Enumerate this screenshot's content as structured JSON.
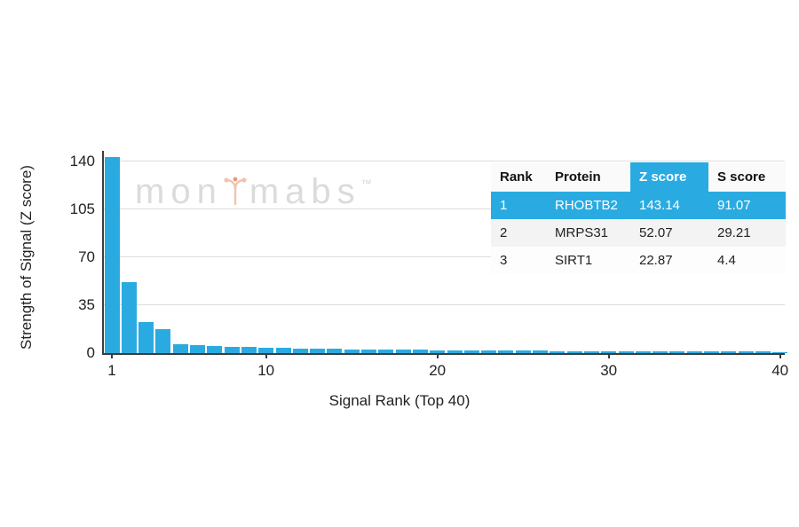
{
  "figure": {
    "xlabel": "Signal Rank (Top 40)",
    "ylabel": "Strength of Signal (Z score)",
    "watermark": {
      "left": "mon",
      "right": "mabs",
      "tm": "™"
    }
  },
  "chart_data": {
    "type": "bar",
    "title": "",
    "xlabel": "Signal Rank (Top 40)",
    "ylabel": "Strength of Signal (Z score)",
    "x": [
      1,
      2,
      3,
      4,
      5,
      6,
      7,
      8,
      9,
      10,
      11,
      12,
      13,
      14,
      15,
      16,
      17,
      18,
      19,
      20,
      21,
      22,
      23,
      24,
      25,
      26,
      27,
      28,
      29,
      30,
      31,
      32,
      33,
      34,
      35,
      36,
      37,
      38,
      39,
      40
    ],
    "values": [
      143.14,
      52.07,
      22.87,
      17.5,
      6.2,
      5.8,
      5.2,
      4.8,
      4.4,
      4.0,
      3.7,
      3.4,
      3.2,
      3.0,
      2.8,
      2.7,
      2.5,
      2.4,
      2.3,
      2.2,
      2.1,
      2.0,
      1.9,
      1.8,
      1.7,
      1.7,
      1.6,
      1.5,
      1.5,
      1.4,
      1.4,
      1.3,
      1.3,
      1.2,
      1.2,
      1.1,
      1.1,
      1.0,
      1.0,
      0.9
    ],
    "yticks": [
      0,
      35,
      70,
      105,
      140
    ],
    "xticks": [
      1,
      10,
      20,
      30,
      40
    ],
    "ylim": [
      0,
      148
    ],
    "xlim": [
      1,
      40
    ],
    "grid": true,
    "legend": "none",
    "bar_color": "#29ABE2"
  },
  "table": {
    "columns": [
      "Rank",
      "Protein",
      "Z score",
      "S score"
    ],
    "highlight_column_index": 2,
    "rows": [
      {
        "rank": "1",
        "protein": "RHOBTB2",
        "z": "143.14",
        "s": "91.07",
        "highlight": true
      },
      {
        "rank": "2",
        "protein": "MRPS31",
        "z": "52.07",
        "s": "29.21",
        "highlight": false
      },
      {
        "rank": "3",
        "protein": "SIRT1",
        "z": "22.87",
        "s": "4.4",
        "highlight": false
      }
    ]
  },
  "colors": {
    "accent": "#29ABE2",
    "gridline": "#dcdcdc",
    "axis": "#3c3c3c",
    "row_alt": "#f3f3f3",
    "watermark": "#dbdbdb"
  }
}
